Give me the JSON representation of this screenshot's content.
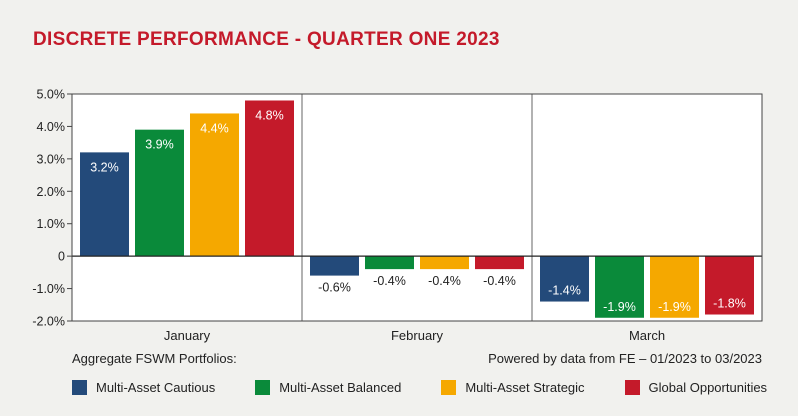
{
  "title": "DISCRETE PERFORMANCE - QUARTER ONE 2023",
  "footer": {
    "left": "Aggregate FSWM Portfolios:",
    "right": "Powered by data from FE – 01/2023 to 03/2023"
  },
  "chart_data": {
    "type": "bar",
    "title": "DISCRETE PERFORMANCE - QUARTER ONE 2023",
    "categories": [
      "January",
      "February",
      "March"
    ],
    "series": [
      {
        "name": "Multi-Asset Cautious",
        "color": "#234a7a",
        "values": [
          3.2,
          -0.6,
          -1.4
        ],
        "labels": [
          "3.2%",
          "-0.6%",
          "-1.4%"
        ]
      },
      {
        "name": "Multi-Asset Balanced",
        "color": "#0a8a3a",
        "values": [
          3.9,
          -0.4,
          -1.9
        ],
        "labels": [
          "3.9%",
          "-0.4%",
          "-1.9%"
        ]
      },
      {
        "name": "Multi-Asset Strategic",
        "color": "#f5a800",
        "values": [
          4.4,
          -0.4,
          -1.9
        ],
        "labels": [
          "4.4%",
          "-0.4%",
          "-1.9%"
        ]
      },
      {
        "name": "Global Opportunities",
        "color": "#c41a2a",
        "values": [
          4.8,
          -0.4,
          -1.8
        ],
        "labels": [
          "4.8%",
          "-0.4%",
          "-1.8%"
        ]
      }
    ],
    "ylim": [
      -2.0,
      5.0
    ],
    "yticks": [
      -2.0,
      -1.0,
      0,
      1.0,
      2.0,
      3.0,
      4.0,
      5.0
    ],
    "ytick_labels": [
      "-2.0%",
      "-1.0%",
      "0",
      "1.0%",
      "2.0%",
      "3.0%",
      "4.0%",
      "5.0%"
    ],
    "xlabel": "",
    "ylabel": "",
    "grid": false,
    "legend": "bottom"
  }
}
